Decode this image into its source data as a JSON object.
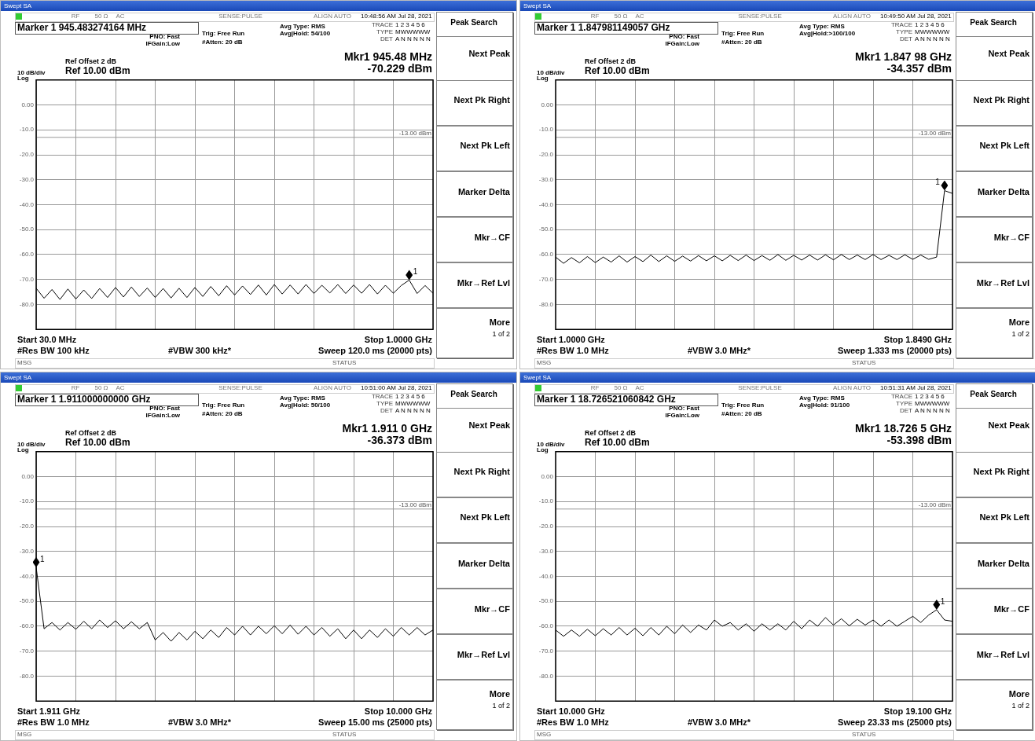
{
  "chart_data": [
    {
      "type": "line",
      "title": "Swept SA",
      "grid": true,
      "tick_labels": "y",
      "categories": [
        null,
        null,
        null,
        null,
        null,
        null,
        null,
        null,
        null,
        null,
        null,
        null,
        null,
        null,
        null,
        null,
        null,
        null,
        null,
        null,
        null,
        null,
        null,
        null,
        null,
        null,
        null,
        null,
        null,
        null,
        null,
        null,
        null,
        null,
        null,
        null,
        null,
        null,
        null,
        null,
        null,
        null,
        null,
        null,
        null,
        null,
        null,
        null,
        null,
        null,
        null
      ],
      "ylim": [
        -90,
        10
      ],
      "yticks": [
        {
          "value": 10,
          "label": null
        },
        {
          "value": 0,
          "label": "0.00"
        },
        {
          "value": -10,
          "label": "-10.0"
        },
        {
          "value": -20,
          "label": "-20.0"
        },
        {
          "value": -30,
          "label": "-30.0"
        },
        {
          "value": -40,
          "label": "-40.0"
        },
        {
          "value": -50,
          "label": "-50.0"
        },
        {
          "value": -60,
          "label": "-60.0"
        },
        {
          "value": -70,
          "label": "-70.0"
        },
        {
          "value": -80,
          "label": "-80.0"
        },
        {
          "value": -90,
          "label": null
        }
      ],
      "ref_lines": [
        {
          "axis": "y",
          "value": -13,
          "label": "-13.00 dBm",
          "color": "#999999"
        }
      ],
      "series": [
        {
          "type": "line",
          "marker": "none",
          "color": "#000000",
          "values": [
            -73.5,
            -77.5,
            -74,
            -78,
            -73.8,
            -77.8,
            -74.2,
            -77.6,
            -73.6,
            -77.2,
            -73.2,
            -77,
            -73,
            -76.8,
            -73.4,
            -77.2,
            -73.6,
            -77.4,
            -73.5,
            -77.2,
            -73.2,
            -76.8,
            -72.8,
            -76.5,
            -72.5,
            -76.2,
            -72.6,
            -76,
            -72.2,
            -76.2,
            -72,
            -75.8,
            -72.2,
            -75.8,
            -72,
            -75.6,
            -72.3,
            -75.4,
            -72,
            -75.6,
            -72.2,
            -75.5,
            -72,
            -75.8,
            -72.3,
            -75.5,
            -72.4,
            -70.229,
            -75.6,
            -72.4,
            -75.5
          ]
        }
      ],
      "annotations": [
        "RF",
        "50 Ω",
        "AC",
        "SENSE:PULSE",
        "ALIGN AUTO",
        "10:48:56 AM Jul 28, 2021",
        "Marker 1 945.483274164 MHz",
        "PNO: Fast",
        "IFGain:Low",
        "Trig: Free Run",
        "#Atten: 20 dB",
        "Avg Type: RMS",
        "Avg|Hold: 54/100",
        "TRACE",
        "1 2 3 4 5 6",
        "TYPE",
        "MWWWWW",
        "DET",
        "A N N N N N",
        "Ref Offset 2 dB",
        "10 dB/div",
        "Log",
        "Ref 10.00 dBm",
        "Mkr1 945.48 MHz",
        "-70.229 dBm",
        "Start 30.0 MHz",
        "Stop 1.0000 GHz",
        "#Res BW 100 kHz",
        "#VBW 300 kHz*",
        "Sweep  120.0 ms (20000 pts)",
        "MSG",
        "STATUS",
        "Peak Search",
        "Next Peak",
        "Next Pk Right",
        "Next Pk Left",
        "Marker Delta",
        "Mkr→CF",
        "Mkr→Ref Lvl",
        "More",
        "1 of 2",
        "1"
      ]
    },
    {
      "type": "line",
      "title": "Swept SA",
      "grid": true,
      "tick_labels": "y",
      "categories": [
        null,
        null,
        null,
        null,
        null,
        null,
        null,
        null,
        null,
        null,
        null,
        null,
        null,
        null,
        null,
        null,
        null,
        null,
        null,
        null,
        null,
        null,
        null,
        null,
        null,
        null,
        null,
        null,
        null,
        null,
        null,
        null,
        null,
        null,
        null,
        null,
        null,
        null,
        null,
        null,
        null,
        null,
        null,
        null,
        null,
        null,
        null,
        null,
        null,
        null,
        null
      ],
      "ylim": [
        -90,
        10
      ],
      "yticks": [
        {
          "value": 10,
          "label": null
        },
        {
          "value": 0,
          "label": "0.00"
        },
        {
          "value": -10,
          "label": "-10.0"
        },
        {
          "value": -20,
          "label": "-20.0"
        },
        {
          "value": -30,
          "label": "-30.0"
        },
        {
          "value": -40,
          "label": "-40.0"
        },
        {
          "value": -50,
          "label": "-50.0"
        },
        {
          "value": -60,
          "label": "-60.0"
        },
        {
          "value": -70,
          "label": "-70.0"
        },
        {
          "value": -80,
          "label": "-80.0"
        },
        {
          "value": -90,
          "label": null
        }
      ],
      "ref_lines": [
        {
          "axis": "y",
          "value": -13,
          "label": "-13.00 dBm",
          "color": "#999999"
        }
      ],
      "series": [
        {
          "type": "line",
          "marker": "none",
          "color": "#000000",
          "values": [
            -61,
            -63.5,
            -61.2,
            -63.3,
            -60.8,
            -63.2,
            -61,
            -63,
            -60.5,
            -63,
            -60.8,
            -62.8,
            -60.2,
            -62.8,
            -60.5,
            -62.7,
            -60.6,
            -62.6,
            -60.4,
            -62.5,
            -60.5,
            -62.5,
            -60.3,
            -62.4,
            -60.2,
            -62.4,
            -60.4,
            -62.3,
            -60,
            -62.3,
            -60.3,
            -62.2,
            -60.2,
            -62.2,
            -60.1,
            -62.1,
            -60,
            -62,
            -60.2,
            -62,
            -60,
            -62,
            -60.3,
            -62,
            -60.1,
            -61.9,
            -60.2,
            -61.9,
            -61,
            -34.357,
            -35.5
          ]
        }
      ],
      "annotations": [
        "RF",
        "50 Ω",
        "AC",
        "SENSE:PULSE",
        "ALIGN AUTO",
        "10:49:50 AM Jul 28, 2021",
        "Marker 1 1.847981149057 GHz",
        "PNO: Fast",
        "IFGain:Low",
        "Trig: Free Run",
        "#Atten: 20 dB",
        "Avg Type: RMS",
        "Avg|Hold:>100/100",
        "TRACE",
        "1 2 3 4 5 6",
        "TYPE",
        "MWWWWW",
        "DET",
        "A N N N N N",
        "Ref Offset 2 dB",
        "10 dB/div",
        "Log",
        "Ref 10.00 dBm",
        "Mkr1 1.847 98 GHz",
        "-34.357 dBm",
        "Start 1.0000 GHz",
        "Stop 1.8490 GHz",
        "#Res BW 1.0 MHz",
        "#VBW 3.0 MHz*",
        "Sweep  1.333 ms (20000 pts)",
        "MSG",
        "STATUS",
        "Peak Search",
        "Next Peak",
        "Next Pk Right",
        "Next Pk Left",
        "Marker Delta",
        "Mkr→CF",
        "Mkr→Ref Lvl",
        "More",
        "1 of 2",
        "1"
      ]
    },
    {
      "type": "line",
      "title": "Swept SA",
      "grid": true,
      "tick_labels": "y",
      "categories": [
        null,
        null,
        null,
        null,
        null,
        null,
        null,
        null,
        null,
        null,
        null,
        null,
        null,
        null,
        null,
        null,
        null,
        null,
        null,
        null,
        null,
        null,
        null,
        null,
        null,
        null,
        null,
        null,
        null,
        null,
        null,
        null,
        null,
        null,
        null,
        null,
        null,
        null,
        null,
        null,
        null,
        null,
        null,
        null,
        null,
        null,
        null,
        null,
        null,
        null,
        null
      ],
      "ylim": [
        -90,
        10
      ],
      "yticks": [
        {
          "value": 10,
          "label": null
        },
        {
          "value": 0,
          "label": "0.00"
        },
        {
          "value": -10,
          "label": "-10.0"
        },
        {
          "value": -20,
          "label": "-20.0"
        },
        {
          "value": -30,
          "label": "-30.0"
        },
        {
          "value": -40,
          "label": "-40.0"
        },
        {
          "value": -50,
          "label": "-50.0"
        },
        {
          "value": -60,
          "label": "-60.0"
        },
        {
          "value": -70,
          "label": "-70.0"
        },
        {
          "value": -80,
          "label": "-80.0"
        },
        {
          "value": -90,
          "label": null
        }
      ],
      "ref_lines": [
        {
          "axis": "y",
          "value": -13,
          "label": "-13.00 dBm",
          "color": "#999999"
        }
      ],
      "series": [
        {
          "type": "line",
          "marker": "none",
          "color": "#000000",
          "values": [
            -36.373,
            -61,
            -58.5,
            -61.5,
            -58.5,
            -61.2,
            -58,
            -61,
            -57.5,
            -60.5,
            -57.8,
            -61,
            -58.2,
            -61,
            -58.5,
            -65.5,
            -62.5,
            -66,
            -62.5,
            -65.5,
            -62,
            -65,
            -61.5,
            -64.5,
            -60.5,
            -63.5,
            -60,
            -63.5,
            -60,
            -63,
            -59.8,
            -63,
            -59.5,
            -63.2,
            -60,
            -63.5,
            -60.5,
            -64,
            -61,
            -65,
            -61.5,
            -65,
            -61.5,
            -64.5,
            -61,
            -64,
            -60.5,
            -63.5,
            -60.5,
            -63.5,
            -61.5
          ]
        }
      ],
      "annotations": [
        "RF",
        "50 Ω",
        "AC",
        "SENSE:PULSE",
        "ALIGN AUTO",
        "10:51:00 AM Jul 28, 2021",
        "Marker 1 1.911000000000 GHz",
        "PNO: Fast",
        "IFGain:Low",
        "Trig: Free Run",
        "#Atten: 20 dB",
        "Avg Type: RMS",
        "Avg|Hold: 50/100",
        "TRACE",
        "1 2 3 4 5 6",
        "TYPE",
        "MWWWWW",
        "DET",
        "A N N N N N",
        "Ref Offset 2 dB",
        "10 dB/div",
        "Log",
        "Ref 10.00 dBm",
        "Mkr1 1.911 0 GHz",
        "-36.373 dBm",
        "Start 1.911 GHz",
        "Stop 10.000 GHz",
        "#Res BW 1.0 MHz",
        "#VBW 3.0 MHz*",
        "Sweep  15.00 ms (25000 pts)",
        "MSG",
        "STATUS",
        "Peak Search",
        "Next Peak",
        "Next Pk Right",
        "Next Pk Left",
        "Marker Delta",
        "Mkr→CF",
        "Mkr→Ref Lvl",
        "More",
        "1 of 2",
        "1"
      ]
    },
    {
      "type": "line",
      "title": "Swept SA",
      "grid": true,
      "tick_labels": "y",
      "categories": [
        null,
        null,
        null,
        null,
        null,
        null,
        null,
        null,
        null,
        null,
        null,
        null,
        null,
        null,
        null,
        null,
        null,
        null,
        null,
        null,
        null,
        null,
        null,
        null,
        null,
        null,
        null,
        null,
        null,
        null,
        null,
        null,
        null,
        null,
        null,
        null,
        null,
        null,
        null,
        null,
        null,
        null,
        null,
        null,
        null,
        null,
        null,
        null,
        null,
        null,
        null
      ],
      "ylim": [
        -90,
        10
      ],
      "yticks": [
        {
          "value": 10,
          "label": null
        },
        {
          "value": 0,
          "label": "0.00"
        },
        {
          "value": -10,
          "label": "-10.0"
        },
        {
          "value": -20,
          "label": "-20.0"
        },
        {
          "value": -30,
          "label": "-30.0"
        },
        {
          "value": -40,
          "label": "-40.0"
        },
        {
          "value": -50,
          "label": "-50.0"
        },
        {
          "value": -60,
          "label": "-60.0"
        },
        {
          "value": -70,
          "label": "-70.0"
        },
        {
          "value": -80,
          "label": "-80.0"
        },
        {
          "value": -90,
          "label": null
        }
      ],
      "ref_lines": [
        {
          "axis": "y",
          "value": -13,
          "label": "-13.00 dBm",
          "color": "#999999"
        }
      ],
      "series": [
        {
          "type": "line",
          "marker": "none",
          "color": "#000000",
          "values": [
            -61.5,
            -64,
            -61.5,
            -64,
            -61.2,
            -63.8,
            -61,
            -63.5,
            -60.5,
            -63.5,
            -60.8,
            -63.8,
            -60.5,
            -63.5,
            -60,
            -63,
            -59.5,
            -62.5,
            -59.5,
            -61.5,
            -57.5,
            -60,
            -58.5,
            -61.5,
            -59,
            -62,
            -59,
            -61.5,
            -59,
            -61.5,
            -58,
            -61,
            -57.5,
            -60,
            -56.5,
            -59.5,
            -57,
            -59.8,
            -57.2,
            -59.5,
            -57.5,
            -60,
            -57.5,
            -60,
            -58,
            -56,
            -58.5,
            -55.5,
            -53.398,
            -57.5,
            -58
          ]
        }
      ],
      "annotations": [
        "RF",
        "50 Ω",
        "AC",
        "SENSE:PULSE",
        "ALIGN AUTO",
        "10:51:31 AM Jul 28, 2021",
        "Marker 1 18.726521060842 GHz",
        "PNO: Fast",
        "IFGain:Low",
        "Trig: Free Run",
        "#Atten: 20 dB",
        "Avg Type: RMS",
        "Avg|Hold: 91/100",
        "TRACE",
        "1 2 3 4 5 6",
        "TYPE",
        "MWWWWW",
        "DET",
        "A N N N N N",
        "Ref Offset 2 dB",
        "10 dB/div",
        "Log",
        "Ref 10.00 dBm",
        "Mkr1 18.726 5 GHz",
        "-53.398 dBm",
        "Start 10.000 GHz",
        "Stop 19.100 GHz",
        "#Res BW 1.0 MHz",
        "#VBW 3.0 MHz*",
        "Sweep  23.33 ms (25000 pts)",
        "MSG",
        "STATUS",
        "Peak Search",
        "Next Peak",
        "Next Pk Right",
        "Next Pk Left",
        "Marker Delta",
        "Mkr→CF",
        "Mkr→Ref Lvl",
        "More",
        "1 of 2",
        "1"
      ]
    }
  ]
}
